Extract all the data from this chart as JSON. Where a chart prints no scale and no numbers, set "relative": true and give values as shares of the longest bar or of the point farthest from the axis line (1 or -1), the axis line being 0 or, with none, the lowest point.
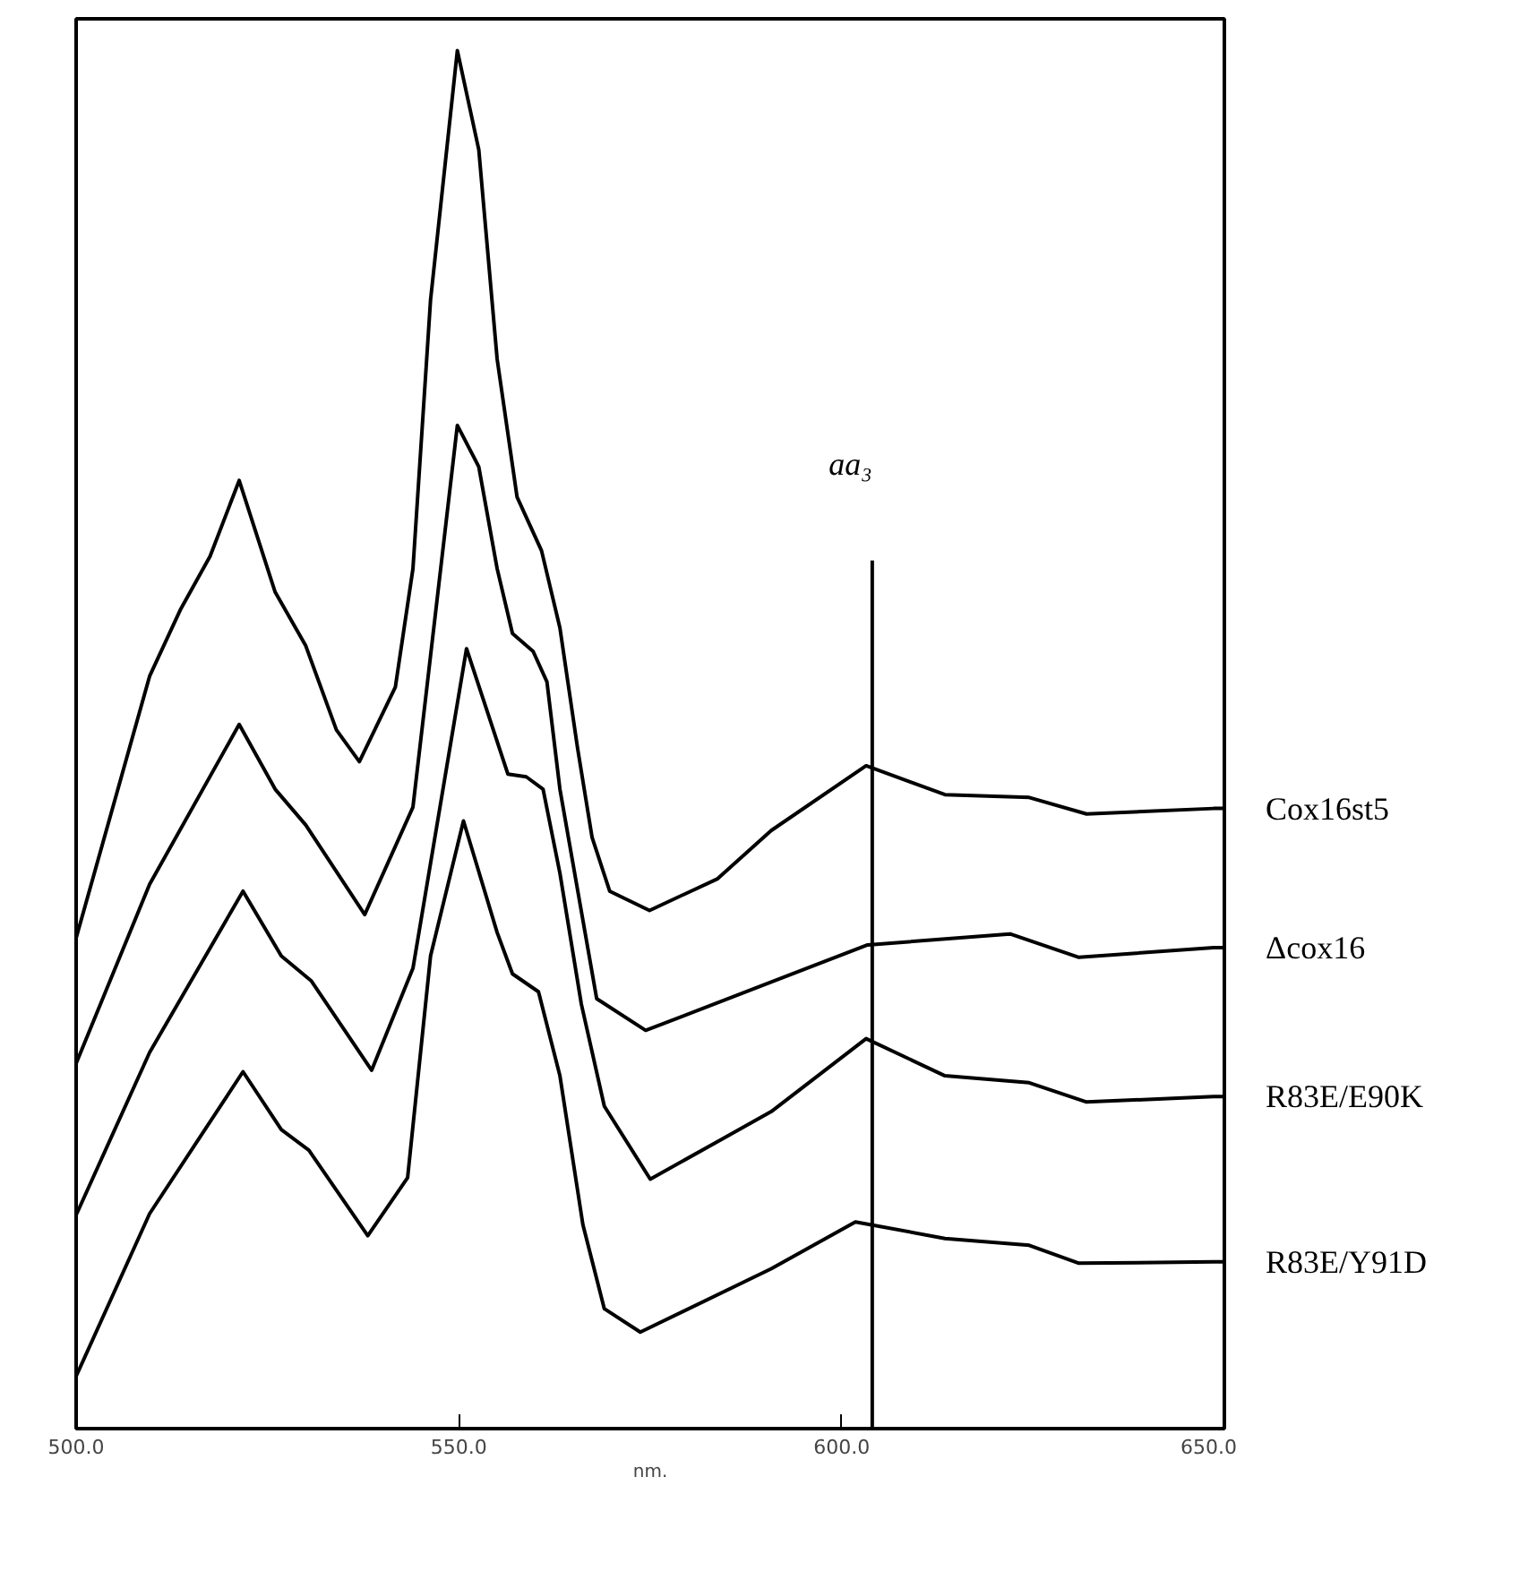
{
  "chart_data": {
    "type": "line",
    "relative": true,
    "xlabel": "nm.",
    "xlim": [
      500,
      650
    ],
    "xticks": [
      {
        "value": 500,
        "label": "500.0"
      },
      {
        "value": 550,
        "label": "550.0"
      },
      {
        "value": 600,
        "label": "600.0"
      },
      {
        "value": 650,
        "label": "650.0"
      }
    ],
    "grid": false,
    "ref_lines": [
      {
        "axis": "x",
        "value": 604,
        "label": "aa₃",
        "color": "#000000"
      }
    ],
    "series": [
      {
        "name": "Cox16st5",
        "color": "#000000",
        "x": [
          500,
          509.6,
          513.6,
          517.5,
          521.3,
          526,
          530,
          534,
          537,
          541.7,
          544,
          546.3,
          549.8,
          552.6,
          555,
          557.6,
          560.8,
          563.2,
          565.5,
          567.4,
          569.7,
          574.9,
          583.8,
          590.8,
          603.2,
          613.5,
          624.5,
          632,
          648.6,
          650
        ],
        "values": [
          0.356,
          0.546,
          0.594,
          0.633,
          0.688,
          0.607,
          0.568,
          0.507,
          0.484,
          0.538,
          0.624,
          0.819,
          1.0,
          0.928,
          0.776,
          0.676,
          0.637,
          0.581,
          0.494,
          0.429,
          0.39,
          0.376,
          0.399,
          0.434,
          0.481,
          0.46,
          0.458,
          0.446,
          0.45,
          0.45
        ]
      },
      {
        "name": "Δcox16",
        "color": "#000000",
        "x": [
          500,
          509.6,
          521.3,
          526,
          530,
          537.7,
          544,
          549.8,
          552.6,
          555,
          557,
          559.7,
          561.5,
          563.2,
          568,
          574.4,
          590.8,
          603.4,
          622,
          631,
          648.6,
          650
        ],
        "values": [
          0.265,
          0.395,
          0.511,
          0.464,
          0.438,
          0.373,
          0.451,
          0.728,
          0.698,
          0.624,
          0.577,
          0.564,
          0.542,
          0.464,
          0.312,
          0.289,
          0.324,
          0.351,
          0.359,
          0.342,
          0.349,
          0.349
        ]
      },
      {
        "name": "R83E/E90K",
        "color": "#000000",
        "x": [
          500,
          509.6,
          521.8,
          526.8,
          530.7,
          538.6,
          544,
          551,
          556.4,
          558.8,
          561,
          563.2,
          566,
          569,
          575,
          590.8,
          603.2,
          613.5,
          624.5,
          632,
          648.6,
          650
        ],
        "values": [
          0.155,
          0.273,
          0.39,
          0.343,
          0.325,
          0.26,
          0.334,
          0.566,
          0.475,
          0.473,
          0.464,
          0.403,
          0.308,
          0.234,
          0.181,
          0.23,
          0.283,
          0.256,
          0.251,
          0.237,
          0.241,
          0.241
        ]
      },
      {
        "name": "R83E/Y91D",
        "color": "#000000",
        "x": [
          500,
          509.6,
          521.8,
          526.8,
          530.4,
          538.1,
          543.3,
          546.3,
          550.6,
          555,
          557,
          560.4,
          563.2,
          566.2,
          569,
          573.7,
          590.8,
          601.8,
          613.5,
          624.5,
          631,
          648.6,
          650
        ],
        "values": [
          0.038,
          0.156,
          0.259,
          0.217,
          0.202,
          0.14,
          0.182,
          0.343,
          0.441,
          0.36,
          0.33,
          0.317,
          0.256,
          0.148,
          0.087,
          0.07,
          0.116,
          0.15,
          0.138,
          0.133,
          0.12,
          0.121,
          0.121
        ]
      }
    ]
  }
}
